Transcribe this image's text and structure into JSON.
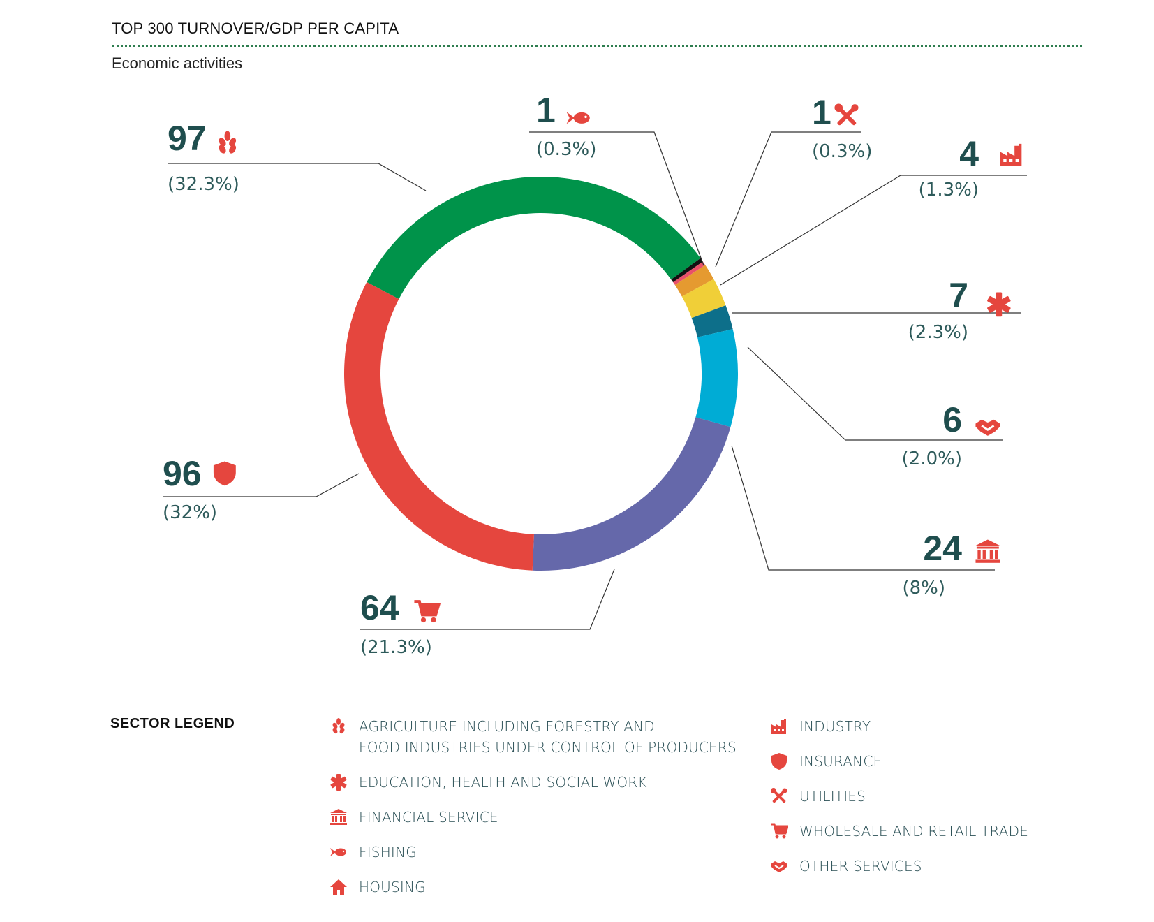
{
  "header": {
    "title": "TOP 300 TURNOVER/GDP PER CAPITA",
    "subtitle": "Economic activities"
  },
  "chart_data": {
    "type": "pie",
    "title": "TOP 300 TURNOVER/GDP PER CAPITA",
    "subtitle": "Economic activities",
    "total": 300,
    "slices": [
      {
        "sector": "AGRICULTURE INCLUDING FORESTRY AND FOOD INDUSTRIES UNDER CONTROL OF PRODUCERS",
        "value": 97,
        "percent": "(32.3%)",
        "color": "#00934a",
        "icon": "wheat-icon"
      },
      {
        "sector": "FISHING",
        "value": 1,
        "percent": "(0.3%)",
        "color": "#111111",
        "icon": "fish-icon"
      },
      {
        "sector": "UTILITIES",
        "value": 1,
        "percent": "(0.3%)",
        "color": "#e8506a",
        "icon": "tools-icon"
      },
      {
        "sector": "INDUSTRY",
        "value": 4,
        "percent": "(1.3%)",
        "color": "#e59a30",
        "icon": "factory-icon"
      },
      {
        "sector": "EDUCATION, HEALTH AND SOCIAL WORK",
        "value": 7,
        "percent": "(2.3%)",
        "color": "#f0cf38",
        "icon": "medical-star-icon"
      },
      {
        "sector": "OTHER SERVICES",
        "value": 6,
        "percent": "(2.0%)",
        "color": "#0d6f8a",
        "icon": "handshake-icon"
      },
      {
        "sector": "FINANCIAL SERVICE",
        "value": 24,
        "percent": "(8%)",
        "color": "#00acd5",
        "icon": "bank-icon"
      },
      {
        "sector": "WHOLESALE AND RETAIL TRADE",
        "value": 64,
        "percent": "(21.3%)",
        "color": "#6568aa",
        "icon": "cart-icon"
      },
      {
        "sector": "INSURANCE",
        "value": 96,
        "percent": "(32%)",
        "color": "#e5463e",
        "icon": "shield-icon"
      }
    ],
    "legend_placement": "bottom"
  },
  "legend": {
    "title": "SECTOR LEGEND",
    "left_items": [
      {
        "line1": "AGRICULTURE INCLUDING FORESTRY AND",
        "line2": "FOOD INDUSTRIES UNDER CONTROL OF PRODUCERS",
        "icon": "wheat-icon"
      },
      {
        "line1": "EDUCATION, HEALTH AND SOCIAL WORK",
        "line2": "",
        "icon": "medical-star-icon"
      },
      {
        "line1": "FINANCIAL SERVICE",
        "line2": "",
        "icon": "bank-icon"
      },
      {
        "line1": "FISHING",
        "line2": "",
        "icon": "fish-icon"
      },
      {
        "line1": "HOUSING",
        "line2": "",
        "icon": "house-icon"
      }
    ],
    "right_items": [
      {
        "line1": "INDUSTRY",
        "icon": "factory-icon"
      },
      {
        "line1": "INSURANCE",
        "icon": "shield-icon"
      },
      {
        "line1": "UTILITIES",
        "icon": "tools-icon"
      },
      {
        "line1": "WHOLESALE AND RETAIL TRADE",
        "icon": "cart-icon"
      },
      {
        "line1": "OTHER SERVICES",
        "icon": "handshake-icon"
      }
    ],
    "icon_color": "#e5463e"
  }
}
